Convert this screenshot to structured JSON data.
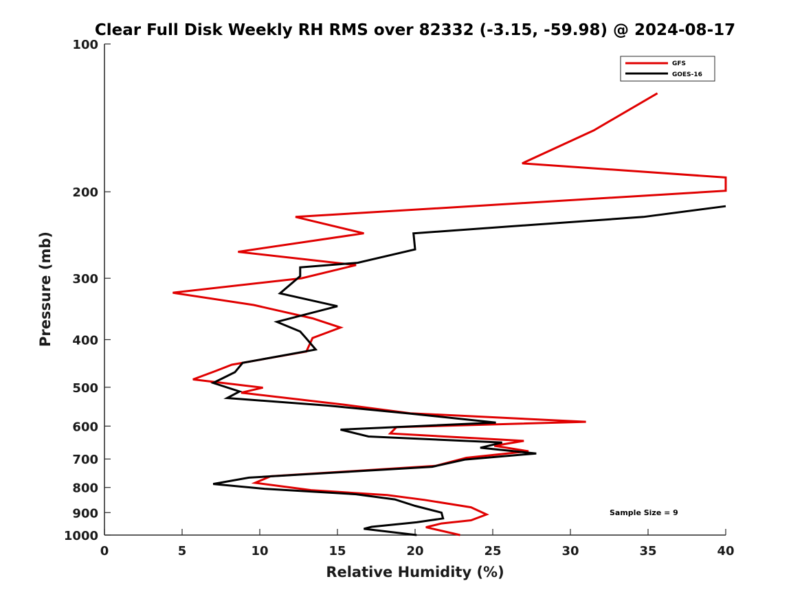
{
  "chart_data": {
    "type": "line",
    "title": "Clear Full Disk Weekly RH RMS over 82332 (-3.15, -59.98) @ 2024-08-17",
    "xlabel": "Relative Humidity (%)",
    "ylabel": "Pressure (mb)",
    "xlim": [
      0,
      40
    ],
    "ylim": [
      100,
      1000
    ],
    "y_scale": "log",
    "y_reversed": true,
    "x_ticks": [
      0,
      5,
      10,
      15,
      20,
      25,
      30,
      35,
      40
    ],
    "y_ticks": [
      100,
      200,
      300,
      400,
      500,
      600,
      700,
      800,
      900,
      1000
    ],
    "grid": false,
    "legend_position": "top-right",
    "annotation": "Sample Size = 9",
    "series": [
      {
        "name": "GFS",
        "color": "#e00000",
        "points": [
          [
            35.6,
            126
          ],
          [
            31.5,
            150
          ],
          [
            26.9,
            175
          ],
          [
            40.0,
            187
          ],
          [
            40.0,
            199
          ],
          [
            12.3,
            225
          ],
          [
            16.7,
            243
          ],
          [
            8.6,
            265
          ],
          [
            16.2,
            282
          ],
          [
            12.7,
            300
          ],
          [
            4.4,
            321
          ],
          [
            9.6,
            340
          ],
          [
            13.4,
            362
          ],
          [
            15.2,
            378
          ],
          [
            13.4,
            397
          ],
          [
            13.0,
            423
          ],
          [
            8.2,
            450
          ],
          [
            7.1,
            464
          ],
          [
            5.7,
            482
          ],
          [
            10.2,
            501
          ],
          [
            8.8,
            513
          ],
          [
            15.5,
            543
          ],
          [
            19.7,
            565
          ],
          [
            31.0,
            588
          ],
          [
            18.8,
            603
          ],
          [
            18.4,
            621
          ],
          [
            27.0,
            643
          ],
          [
            25.1,
            658
          ],
          [
            27.3,
            675
          ],
          [
            23.3,
            696
          ],
          [
            21.3,
            723
          ],
          [
            10.7,
            759
          ],
          [
            9.7,
            783
          ],
          [
            13.3,
            810
          ],
          [
            18.2,
            829
          ],
          [
            20.6,
            848
          ],
          [
            23.6,
            878
          ],
          [
            24.6,
            908
          ],
          [
            23.6,
            933
          ],
          [
            21.7,
            947
          ],
          [
            20.7,
            964
          ],
          [
            22.9,
            1000
          ]
        ]
      },
      {
        "name": "GOES-16",
        "color": "#000000",
        "points": [
          [
            40.0,
            214
          ],
          [
            34.7,
            225
          ],
          [
            19.9,
            243
          ],
          [
            20.0,
            262
          ],
          [
            16.3,
            279
          ],
          [
            12.6,
            285
          ],
          [
            12.6,
            297
          ],
          [
            11.3,
            322
          ],
          [
            15.0,
            342
          ],
          [
            11.1,
            368
          ],
          [
            12.6,
            385
          ],
          [
            13.0,
            398
          ],
          [
            13.6,
            419
          ],
          [
            8.9,
            446
          ],
          [
            8.4,
            466
          ],
          [
            7.0,
            490
          ],
          [
            8.7,
            510
          ],
          [
            7.9,
            526
          ],
          [
            14.4,
            545
          ],
          [
            19.5,
            565
          ],
          [
            25.2,
            590
          ],
          [
            15.2,
            610
          ],
          [
            17.0,
            630
          ],
          [
            25.6,
            648
          ],
          [
            24.2,
            664
          ],
          [
            27.8,
            682
          ],
          [
            23.2,
            702
          ],
          [
            21.1,
            726
          ],
          [
            9.3,
            764
          ],
          [
            7.0,
            787
          ],
          [
            10.3,
            805
          ],
          [
            16.2,
            826
          ],
          [
            18.7,
            846
          ],
          [
            20.0,
            872
          ],
          [
            21.7,
            900
          ],
          [
            21.8,
            925
          ],
          [
            20.1,
            942
          ],
          [
            17.2,
            962
          ],
          [
            16.7,
            971
          ],
          [
            20.1,
            1000
          ]
        ]
      }
    ]
  }
}
